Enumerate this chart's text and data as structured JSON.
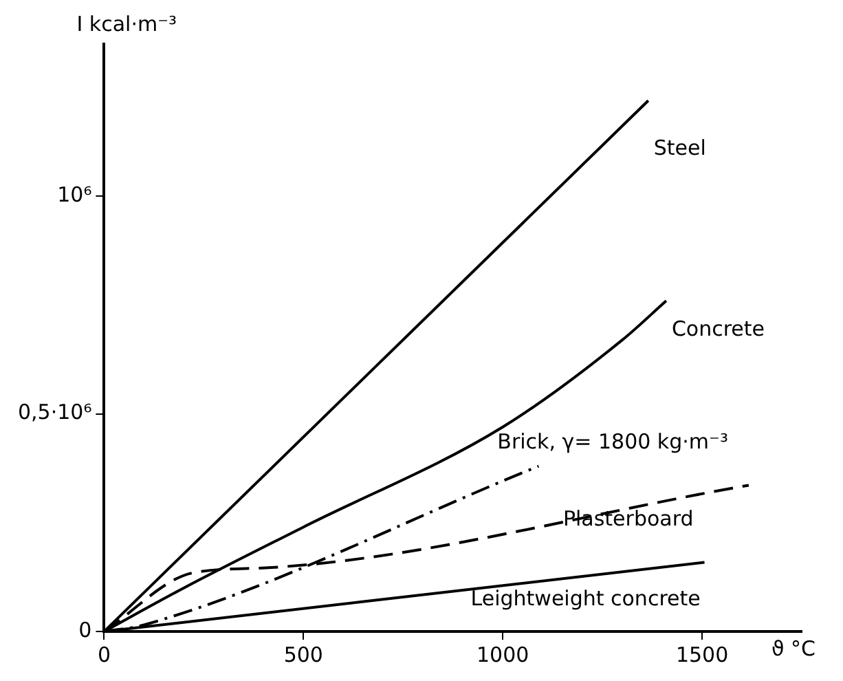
{
  "chart_data": {
    "type": "line",
    "xlabel": "ϑ °C",
    "ylabel": "I kcal·m⁻³",
    "xlim": [
      0,
      1750
    ],
    "ylim": [
      0,
      1350000
    ],
    "xticks": [
      0,
      500,
      1000,
      1500
    ],
    "yticks": [
      0,
      {
        "value": 500000,
        "label": "0,5·10⁶"
      },
      {
        "value": 1000000,
        "label": "10⁶"
      }
    ],
    "grid": false,
    "legend": false,
    "marker": "none",
    "series": [
      {
        "name": "Steel",
        "color": "#000000",
        "line_style": "solid",
        "x": [
          0,
          1365
        ],
        "values": [
          0,
          1220000
        ]
      },
      {
        "name": "Concrete",
        "color": "#000000",
        "line_style": "solid",
        "x": [
          0,
          200,
          500,
          1000,
          1300,
          1410
        ],
        "values": [
          0,
          100000,
          240000,
          470000,
          670000,
          760000
        ]
      },
      {
        "name": "Brick, γ= 1800 kg·m⁻³",
        "color": "#000000",
        "line_style": "dashdot",
        "x": [
          0,
          100,
          1090
        ],
        "values": [
          0,
          15000,
          380000
        ]
      },
      {
        "name": "Plasterboard",
        "color": "#000000",
        "line_style": "dashed",
        "x": [
          0,
          224,
          420,
          1617
        ],
        "values": [
          0,
          135000,
          147000,
          336000
        ]
      },
      {
        "name": "Leightweight concrete",
        "color": "#000000",
        "line_style": "solid",
        "x": [
          0,
          1506
        ],
        "values": [
          0,
          159000
        ]
      }
    ]
  }
}
